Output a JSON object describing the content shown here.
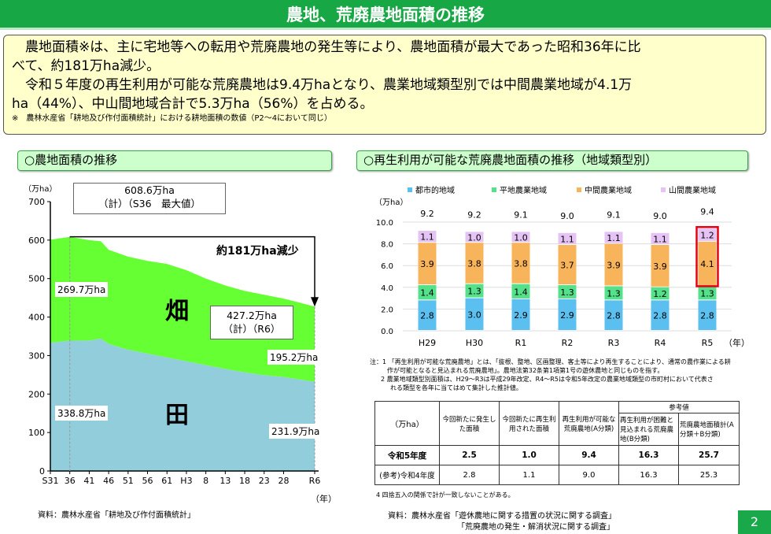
{
  "title": "農地、荒廃農地面積の推移",
  "summary": {
    "p1a": "農地面積※は、主に宅地等への転用や荒廃農地の発生等により、農地面積が最大であった昭和36年に比",
    "p1b": "べて、約181万ha減少。",
    "p2a": "令和５年度の再生利用が可能な荒廃農地は9.4万haとなり、農業地域類型別では中間農業地域が4.1万",
    "p2b": "ha（44%）、中山間地域合計で5.3万ha（56%）を占める。",
    "note": "※　農林水産省「耕地及び作付面積統計」における耕地面積の数値（P2～4において同じ）"
  },
  "left_section": {
    "title": "○農地面積の推移",
    "source": "資料：農林水産省「耕地及び作付面積統計」"
  },
  "right_section": {
    "title": "○再生利用が可能な荒廃農地面積の推移（地域類型別）"
  },
  "chart_data": [
    {
      "type": "area",
      "ylabel": "（万ha）",
      "xlabel": "（年）",
      "ylim": [
        0,
        700
      ],
      "yticks": [
        "0",
        "100",
        "200",
        "300",
        "400",
        "500",
        "600",
        "700"
      ],
      "xticks": [
        "S31",
        "36",
        "41",
        "46",
        "51",
        "56",
        "61",
        "H3",
        "8",
        "13",
        "18",
        "23",
        "28",
        "R6"
      ],
      "x": [
        1956,
        1961,
        1966,
        1969,
        1971,
        1976,
        1981,
        1986,
        1991,
        1996,
        2001,
        2006,
        2011,
        2016,
        2020,
        2024
      ],
      "series": [
        {
          "name": "田",
          "color": "#92cddc",
          "values": [
            333,
            338.8,
            339,
            344,
            330,
            315,
            305,
            295,
            285,
            275,
            265,
            256,
            249,
            244,
            238,
            231.9
          ]
        },
        {
          "name": "畑",
          "color": "#66ff33",
          "values": [
            268,
            269.7,
            261,
            253,
            245,
            242,
            241,
            243,
            237,
            225,
            217,
            212,
            209,
            204,
            200,
            195.2
          ]
        }
      ],
      "annotations": {
        "peak": "608.6万ha",
        "peak_sub": "（計）（S36　最大値）",
        "latest": "427.2万ha",
        "latest_sub": "（計）（R6）",
        "decrease": "約181万ha減少",
        "hata_start": "269.7万ha",
        "ta_start": "338.8万ha",
        "hata_end": "195.2万ha",
        "ta_end": "231.9万ha"
      }
    },
    {
      "type": "bar",
      "stacked": true,
      "ylabel": "（万ha）",
      "xlabel": "（年）",
      "ylim": [
        0,
        10
      ],
      "yticks": [
        "0.0",
        "2.0",
        "4.0",
        "6.0",
        "8.0",
        "10.0"
      ],
      "categories": [
        "H29",
        "H30",
        "R1",
        "R2",
        "R3",
        "R4",
        "R5"
      ],
      "totals": [
        "9.2",
        "9.2",
        "9.1",
        "9.0",
        "9.1",
        "9.0",
        "9.4"
      ],
      "series": [
        {
          "name": "都市的地域",
          "color": "#5bc0f0",
          "values": [
            2.8,
            3.0,
            2.9,
            2.9,
            2.8,
            2.8,
            2.8
          ]
        },
        {
          "name": "平地農業地域",
          "color": "#55e08a",
          "values": [
            1.4,
            1.3,
            1.4,
            1.3,
            1.3,
            1.2,
            1.3
          ]
        },
        {
          "name": "中間農業地域",
          "color": "#f8b45a",
          "values": [
            3.9,
            3.8,
            3.8,
            3.7,
            3.9,
            3.9,
            4.1
          ]
        },
        {
          "name": "山間農業地域",
          "color": "#e6c3f5",
          "values": [
            1.1,
            1.0,
            1.0,
            1.1,
            1.1,
            1.1,
            1.2
          ]
        }
      ],
      "highlight": "R5",
      "highlight_color": "#e60012",
      "legend": "top"
    }
  ],
  "notes": {
    "n1a": "注：1 「再生利用が可能な荒廃農地」とは、「抜根、整地、区画整理、客土等により再生することにより、通常の農作業による耕",
    "n1b": "作が可能となると見込まれる荒廃農地」。農地法第32条第1項第1号の遊休農地と同じものを指す。",
    "n2a": "2 農業地域類型別面積は、H29～R3は平成29年改定、R4～R5は令和5年改定の農業地域類型の市町村において代表さ",
    "n2b": "れる類型を各年に当てはめて集計した推計値。",
    "n4": "4 四捨五入の関係で計が一致しないことがある。"
  },
  "table": {
    "unit": "（万ha）",
    "h1": "今回新たに発生した面積",
    "h2": "今回新たに再生利用された面積",
    "h3": "再生利用が可能な荒廃農地(A分類)",
    "ref": "参考値",
    "h4": "再生利用が困難と見込まれる荒廃農地(B分類)",
    "h5": "荒廃農地面積計(A分類＋B分類)",
    "rows": [
      {
        "label": "令和5年度",
        "v": [
          "2.5",
          "1.0",
          "9.4",
          "16.3",
          "25.7"
        ]
      },
      {
        "label": "(参考)令和4年度",
        "v": [
          "2.8",
          "1.1",
          "9.0",
          "16.3",
          "25.3"
        ]
      }
    ]
  },
  "right_source1": "資料：農林水産省「遊休農地に関する措置の状況に関する調査」",
  "right_source2": "「荒廃農地の発生・解消状況に関する調査」",
  "page_number": "2"
}
